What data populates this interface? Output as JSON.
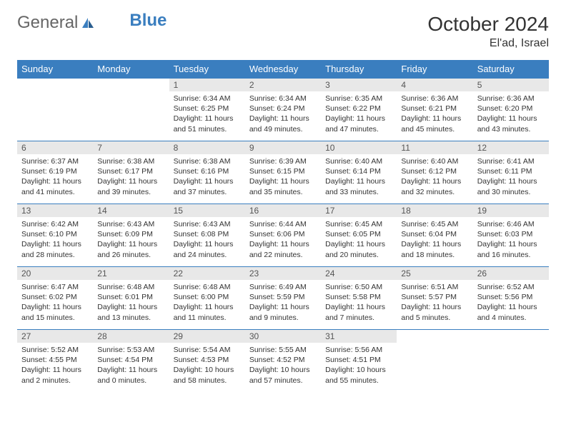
{
  "logo": {
    "part1": "General",
    "part2": "Blue"
  },
  "header": {
    "month": "October 2024",
    "location": "El'ad, Israel"
  },
  "colors": {
    "header_bg": "#3a7ebf",
    "header_text": "#ffffff",
    "daynum_bg": "#e8e8e8",
    "body_text": "#333333",
    "page_bg": "#ffffff"
  },
  "daysOfWeek": [
    "Sunday",
    "Monday",
    "Tuesday",
    "Wednesday",
    "Thursday",
    "Friday",
    "Saturday"
  ],
  "weeks": [
    [
      {
        "empty": true
      },
      {
        "empty": true
      },
      {
        "n": "1",
        "sunrise": "6:34 AM",
        "sunset": "6:25 PM",
        "daylight": "11 hours and 51 minutes."
      },
      {
        "n": "2",
        "sunrise": "6:34 AM",
        "sunset": "6:24 PM",
        "daylight": "11 hours and 49 minutes."
      },
      {
        "n": "3",
        "sunrise": "6:35 AM",
        "sunset": "6:22 PM",
        "daylight": "11 hours and 47 minutes."
      },
      {
        "n": "4",
        "sunrise": "6:36 AM",
        "sunset": "6:21 PM",
        "daylight": "11 hours and 45 minutes."
      },
      {
        "n": "5",
        "sunrise": "6:36 AM",
        "sunset": "6:20 PM",
        "daylight": "11 hours and 43 minutes."
      }
    ],
    [
      {
        "n": "6",
        "sunrise": "6:37 AM",
        "sunset": "6:19 PM",
        "daylight": "11 hours and 41 minutes."
      },
      {
        "n": "7",
        "sunrise": "6:38 AM",
        "sunset": "6:17 PM",
        "daylight": "11 hours and 39 minutes."
      },
      {
        "n": "8",
        "sunrise": "6:38 AM",
        "sunset": "6:16 PM",
        "daylight": "11 hours and 37 minutes."
      },
      {
        "n": "9",
        "sunrise": "6:39 AM",
        "sunset": "6:15 PM",
        "daylight": "11 hours and 35 minutes."
      },
      {
        "n": "10",
        "sunrise": "6:40 AM",
        "sunset": "6:14 PM",
        "daylight": "11 hours and 33 minutes."
      },
      {
        "n": "11",
        "sunrise": "6:40 AM",
        "sunset": "6:12 PM",
        "daylight": "11 hours and 32 minutes."
      },
      {
        "n": "12",
        "sunrise": "6:41 AM",
        "sunset": "6:11 PM",
        "daylight": "11 hours and 30 minutes."
      }
    ],
    [
      {
        "n": "13",
        "sunrise": "6:42 AM",
        "sunset": "6:10 PM",
        "daylight": "11 hours and 28 minutes."
      },
      {
        "n": "14",
        "sunrise": "6:43 AM",
        "sunset": "6:09 PM",
        "daylight": "11 hours and 26 minutes."
      },
      {
        "n": "15",
        "sunrise": "6:43 AM",
        "sunset": "6:08 PM",
        "daylight": "11 hours and 24 minutes."
      },
      {
        "n": "16",
        "sunrise": "6:44 AM",
        "sunset": "6:06 PM",
        "daylight": "11 hours and 22 minutes."
      },
      {
        "n": "17",
        "sunrise": "6:45 AM",
        "sunset": "6:05 PM",
        "daylight": "11 hours and 20 minutes."
      },
      {
        "n": "18",
        "sunrise": "6:45 AM",
        "sunset": "6:04 PM",
        "daylight": "11 hours and 18 minutes."
      },
      {
        "n": "19",
        "sunrise": "6:46 AM",
        "sunset": "6:03 PM",
        "daylight": "11 hours and 16 minutes."
      }
    ],
    [
      {
        "n": "20",
        "sunrise": "6:47 AM",
        "sunset": "6:02 PM",
        "daylight": "11 hours and 15 minutes."
      },
      {
        "n": "21",
        "sunrise": "6:48 AM",
        "sunset": "6:01 PM",
        "daylight": "11 hours and 13 minutes."
      },
      {
        "n": "22",
        "sunrise": "6:48 AM",
        "sunset": "6:00 PM",
        "daylight": "11 hours and 11 minutes."
      },
      {
        "n": "23",
        "sunrise": "6:49 AM",
        "sunset": "5:59 PM",
        "daylight": "11 hours and 9 minutes."
      },
      {
        "n": "24",
        "sunrise": "6:50 AM",
        "sunset": "5:58 PM",
        "daylight": "11 hours and 7 minutes."
      },
      {
        "n": "25",
        "sunrise": "6:51 AM",
        "sunset": "5:57 PM",
        "daylight": "11 hours and 5 minutes."
      },
      {
        "n": "26",
        "sunrise": "6:52 AM",
        "sunset": "5:56 PM",
        "daylight": "11 hours and 4 minutes."
      }
    ],
    [
      {
        "n": "27",
        "sunrise": "5:52 AM",
        "sunset": "4:55 PM",
        "daylight": "11 hours and 2 minutes."
      },
      {
        "n": "28",
        "sunrise": "5:53 AM",
        "sunset": "4:54 PM",
        "daylight": "11 hours and 0 minutes."
      },
      {
        "n": "29",
        "sunrise": "5:54 AM",
        "sunset": "4:53 PM",
        "daylight": "10 hours and 58 minutes."
      },
      {
        "n": "30",
        "sunrise": "5:55 AM",
        "sunset": "4:52 PM",
        "daylight": "10 hours and 57 minutes."
      },
      {
        "n": "31",
        "sunrise": "5:56 AM",
        "sunset": "4:51 PM",
        "daylight": "10 hours and 55 minutes."
      },
      {
        "empty": true
      },
      {
        "empty": true
      }
    ]
  ],
  "labels": {
    "sunrise": "Sunrise:",
    "sunset": "Sunset:",
    "daylight": "Daylight:"
  }
}
